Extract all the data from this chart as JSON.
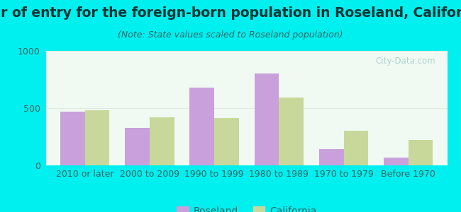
{
  "title": "Year of entry for the foreign-born population in Roseland, California",
  "subtitle": "(Note: State values scaled to Roseland population)",
  "categories": [
    "2010 or later",
    "2000 to 2009",
    "1990 to 1999",
    "1980 to 1989",
    "1970 to 1979",
    "Before 1970"
  ],
  "roseland": [
    470,
    330,
    680,
    800,
    145,
    70
  ],
  "california": [
    480,
    420,
    415,
    590,
    305,
    225
  ],
  "roseland_color": "#c9a0dc",
  "california_color": "#c8d89a",
  "background_outer": "#00efef",
  "background_inner": "#f0faf2",
  "ylim": [
    0,
    1000
  ],
  "yticks": [
    0,
    500,
    1000
  ],
  "legend_roseland": "Roseland",
  "legend_california": "California",
  "bar_width": 0.38,
  "title_fontsize": 13.5,
  "subtitle_fontsize": 9,
  "tick_fontsize": 9,
  "legend_fontsize": 10,
  "title_color": "#003333",
  "subtitle_color": "#336666",
  "tick_color": "#336666",
  "watermark_color": "#aacccc",
  "grid_color": "#e0ece0"
}
